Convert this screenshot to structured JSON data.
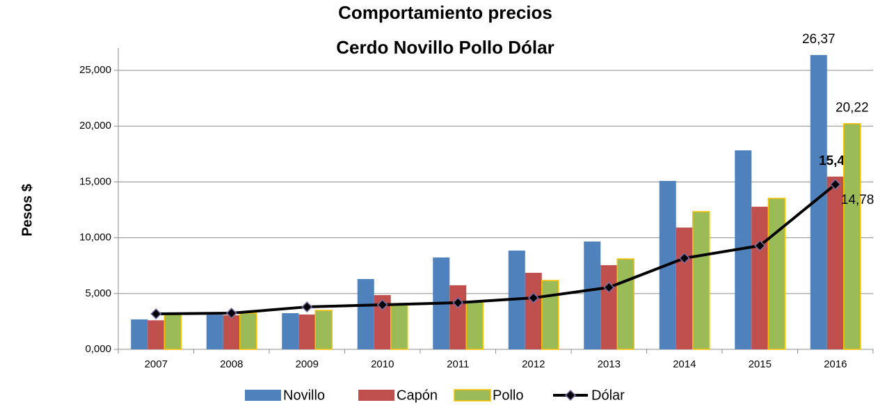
{
  "chart_data": {
    "type": "bar",
    "title": [
      "Comportamiento precios",
      "Cerdo Novillo Pollo Dólar"
    ],
    "ylabel": "Pesos $",
    "categories": [
      "2007",
      "2008",
      "2009",
      "2010",
      "2011",
      "2012",
      "2013",
      "2014",
      "2015",
      "2016"
    ],
    "series": [
      {
        "name": "Novillo",
        "color": "#4f81bd",
        "values": [
          2.68,
          3.1,
          3.24,
          6.3,
          8.23,
          8.85,
          9.66,
          15.09,
          17.83,
          26.37
        ],
        "value_labels": [
          null,
          null,
          null,
          null,
          null,
          null,
          null,
          null,
          null,
          "26,37"
        ]
      },
      {
        "name": "Capón",
        "color": "#c0504d",
        "values": [
          2.6,
          3.05,
          3.12,
          4.86,
          5.74,
          6.86,
          7.54,
          10.91,
          12.78,
          15.48
        ],
        "value_labels": [
          null,
          null,
          null,
          null,
          null,
          null,
          null,
          null,
          null,
          "15,48"
        ]
      },
      {
        "name": "Pollo",
        "color": "#9bbb59",
        "edgecolor": "#ffc000",
        "values": [
          3.12,
          3.24,
          3.49,
          3.99,
          4.24,
          6.17,
          8.1,
          12.34,
          13.53,
          20.22
        ],
        "value_labels": [
          null,
          null,
          null,
          null,
          null,
          null,
          null,
          null,
          null,
          "20,22"
        ]
      },
      {
        "name": "Dólar",
        "type": "line",
        "color": "#000000",
        "marker_edge": "#7f6fa8",
        "values": [
          3.18,
          3.24,
          3.8,
          3.99,
          4.18,
          4.61,
          5.55,
          8.17,
          9.29,
          14.78
        ],
        "value_labels": [
          null,
          null,
          null,
          null,
          null,
          null,
          null,
          null,
          null,
          "14,78"
        ]
      }
    ],
    "ylim": [
      0,
      27
    ],
    "yticks": [
      {
        "value": 0,
        "label": "0,000"
      },
      {
        "value": 5,
        "label": "5,000"
      },
      {
        "value": 10,
        "label": "10,000"
      },
      {
        "value": 15,
        "label": "15,000"
      },
      {
        "value": 20,
        "label": "20,000"
      },
      {
        "value": 25,
        "label": "25,000"
      }
    ],
    "grid": true,
    "legend": "bottom"
  }
}
